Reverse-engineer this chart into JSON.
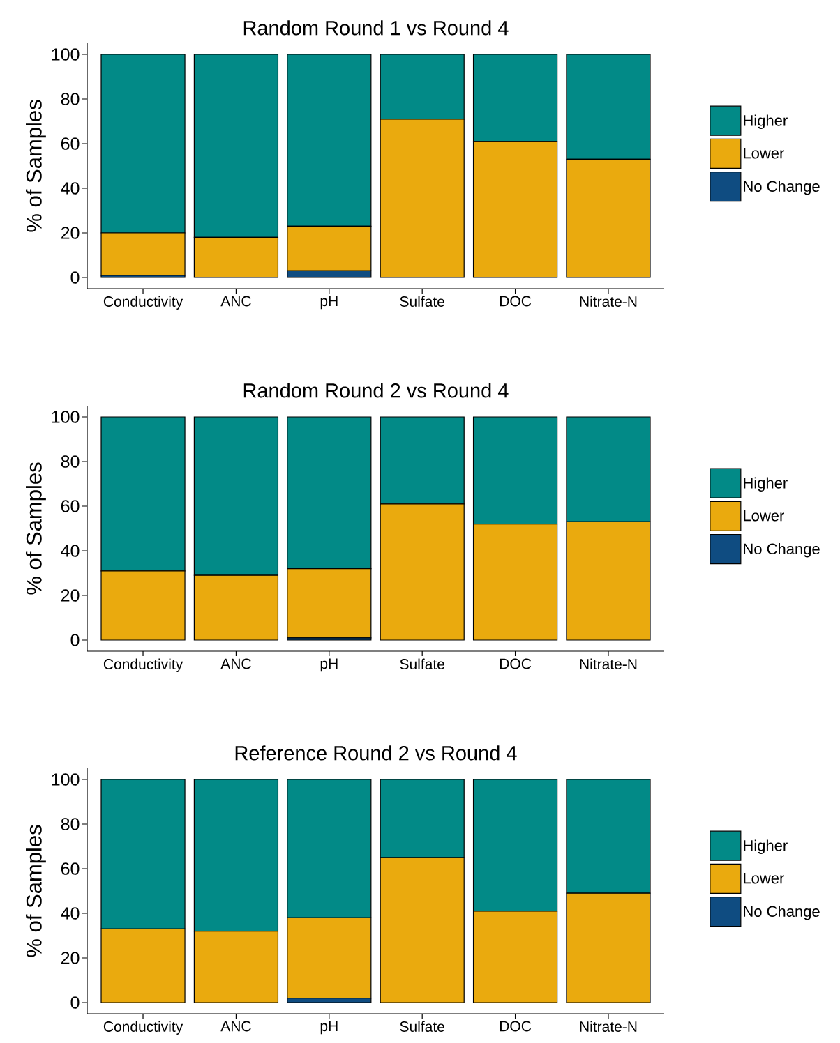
{
  "chart_data": [
    {
      "type": "bar",
      "title": "Random Round 1 vs Round 4",
      "ylabel": "% of Samples",
      "categories": [
        "Conductivity",
        "ANC",
        "pH",
        "Sulfate",
        "DOC",
        "Nitrate-N"
      ],
      "stacked": true,
      "ylim": [
        -5,
        105
      ],
      "yticks": [
        0,
        20,
        40,
        60,
        80,
        100
      ],
      "legend": "right",
      "series": [
        {
          "name": "No Change",
          "color": "#0f4c81",
          "values": [
            1,
            0,
            3,
            0,
            0,
            0
          ]
        },
        {
          "name": "Lower",
          "color": "#eaaa0e",
          "values": [
            19,
            18,
            20,
            71,
            61,
            53
          ]
        },
        {
          "name": "Higher",
          "color": "#028a87",
          "values": [
            80,
            82,
            77,
            29,
            39,
            47
          ]
        }
      ]
    },
    {
      "type": "bar",
      "title": "Random Round 2 vs Round 4",
      "ylabel": "% of Samples",
      "categories": [
        "Conductivity",
        "ANC",
        "pH",
        "Sulfate",
        "DOC",
        "Nitrate-N"
      ],
      "stacked": true,
      "ylim": [
        -5,
        105
      ],
      "yticks": [
        0,
        20,
        40,
        60,
        80,
        100
      ],
      "legend": "right",
      "series": [
        {
          "name": "No Change",
          "color": "#0f4c81",
          "values": [
            0,
            0,
            1,
            0,
            0,
            0
          ]
        },
        {
          "name": "Lower",
          "color": "#eaaa0e",
          "values": [
            31,
            29,
            31,
            61,
            52,
            53
          ]
        },
        {
          "name": "Higher",
          "color": "#028a87",
          "values": [
            69,
            71,
            68,
            39,
            48,
            47
          ]
        }
      ]
    },
    {
      "type": "bar",
      "title": "Reference Round 2 vs Round 4",
      "ylabel": "% of Samples",
      "categories": [
        "Conductivity",
        "ANC",
        "pH",
        "Sulfate",
        "DOC",
        "Nitrate-N"
      ],
      "stacked": true,
      "ylim": [
        -5,
        105
      ],
      "yticks": [
        0,
        20,
        40,
        60,
        80,
        100
      ],
      "legend": "right",
      "series": [
        {
          "name": "No Change",
          "color": "#0f4c81",
          "values": [
            0,
            0,
            2,
            0,
            0,
            0
          ]
        },
        {
          "name": "Lower",
          "color": "#eaaa0e",
          "values": [
            33,
            32,
            36,
            65,
            41,
            49
          ]
        },
        {
          "name": "Higher",
          "color": "#028a87",
          "values": [
            67,
            68,
            62,
            35,
            59,
            51
          ]
        }
      ]
    }
  ]
}
